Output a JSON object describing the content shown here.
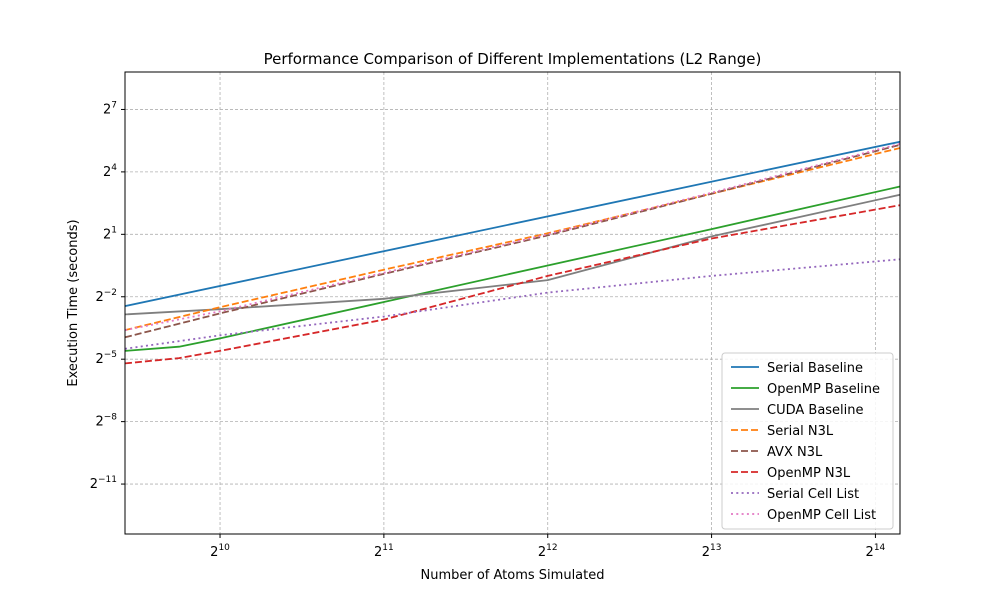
{
  "chart_data": {
    "type": "line",
    "title": "Performance Comparison of Different Implementations (L2 Range)",
    "xlabel": "Number of Atoms Simulated",
    "ylabel": "Execution Time (seconds)",
    "x_scale": "log2",
    "y_scale": "log2",
    "x_log2_range": [
      9.42,
      14.15
    ],
    "y_log2_range": [
      -13.4,
      8.8
    ],
    "x_ticks": [
      {
        "base": "2",
        "exp": "10",
        "value_log2": 10
      },
      {
        "base": "2",
        "exp": "11",
        "value_log2": 11
      },
      {
        "base": "2",
        "exp": "12",
        "value_log2": 12
      },
      {
        "base": "2",
        "exp": "13",
        "value_log2": 13
      },
      {
        "base": "2",
        "exp": "14",
        "value_log2": 14
      }
    ],
    "y_ticks": [
      {
        "base": "2",
        "exp": "7",
        "value_log2": 7
      },
      {
        "base": "2",
        "exp": "4",
        "value_log2": 4
      },
      {
        "base": "2",
        "exp": "1",
        "value_log2": 1
      },
      {
        "base": "2",
        "exp": "−2",
        "value_log2": -2
      },
      {
        "base": "2",
        "exp": "−5",
        "value_log2": -5
      },
      {
        "base": "2",
        "exp": "−8",
        "value_log2": -8
      },
      {
        "base": "2",
        "exp": "−11",
        "value_log2": -11
      }
    ],
    "grid": true,
    "legend_position": "lower-right",
    "series": [
      {
        "name": "Serial Baseline",
        "color": "#1f77b4",
        "style": "solid",
        "x_log2": [
          9.42,
          14.15
        ],
        "y_log2": [
          -2.45,
          5.45
        ]
      },
      {
        "name": "OpenMP Baseline",
        "color": "#2ca02c",
        "style": "solid",
        "x_log2": [
          9.42,
          9.75,
          10.0,
          11.0,
          12.0,
          13.0,
          14.15
        ],
        "y_log2": [
          -4.6,
          -4.4,
          -4.0,
          -2.25,
          -0.5,
          1.25,
          3.3
        ]
      },
      {
        "name": "CUDA Baseline",
        "color": "#7f7f7f",
        "style": "solid",
        "x_log2": [
          9.42,
          10.0,
          11.0,
          12.0,
          13.0,
          14.15
        ],
        "y_log2": [
          -2.85,
          -2.6,
          -2.1,
          -1.2,
          0.9,
          2.9
        ]
      },
      {
        "name": "Serial N3L",
        "color": "#ff7f0e",
        "style": "dashed",
        "x_log2": [
          9.42,
          10.0,
          11.0,
          12.0,
          13.0,
          14.15
        ],
        "y_log2": [
          -3.6,
          -2.5,
          -0.7,
          1.05,
          2.95,
          5.15
        ]
      },
      {
        "name": "AVX N3L",
        "color": "#8c564b",
        "style": "dashed",
        "x_log2": [
          9.42,
          10.0,
          11.0,
          12.0,
          13.0,
          14.15
        ],
        "y_log2": [
          -3.95,
          -2.8,
          -0.9,
          0.95,
          2.95,
          5.3
        ]
      },
      {
        "name": "OpenMP N3L",
        "color": "#d62728",
        "style": "dashed",
        "x_log2": [
          9.42,
          9.75,
          10.0,
          11.0,
          12.0,
          13.0,
          14.15
        ],
        "y_log2": [
          -5.2,
          -4.95,
          -4.6,
          -3.1,
          -1.0,
          0.8,
          2.4
        ]
      },
      {
        "name": "Serial Cell List",
        "color": "#9467bd",
        "style": "dotted",
        "x_log2": [
          9.42,
          10.0,
          11.0,
          12.0,
          13.0,
          14.15
        ],
        "y_log2": [
          -4.5,
          -3.85,
          -2.95,
          -1.8,
          -1.0,
          -0.2
        ]
      },
      {
        "name": "OpenMP Cell List",
        "color": "#e377c2",
        "style": "dotted",
        "x_log2": [
          9.42,
          10.0,
          11.0,
          12.0,
          13.0,
          14.15
        ],
        "y_log2": [
          -3.6,
          -2.7,
          -0.85,
          1.0,
          3.0,
          5.35
        ]
      }
    ]
  }
}
